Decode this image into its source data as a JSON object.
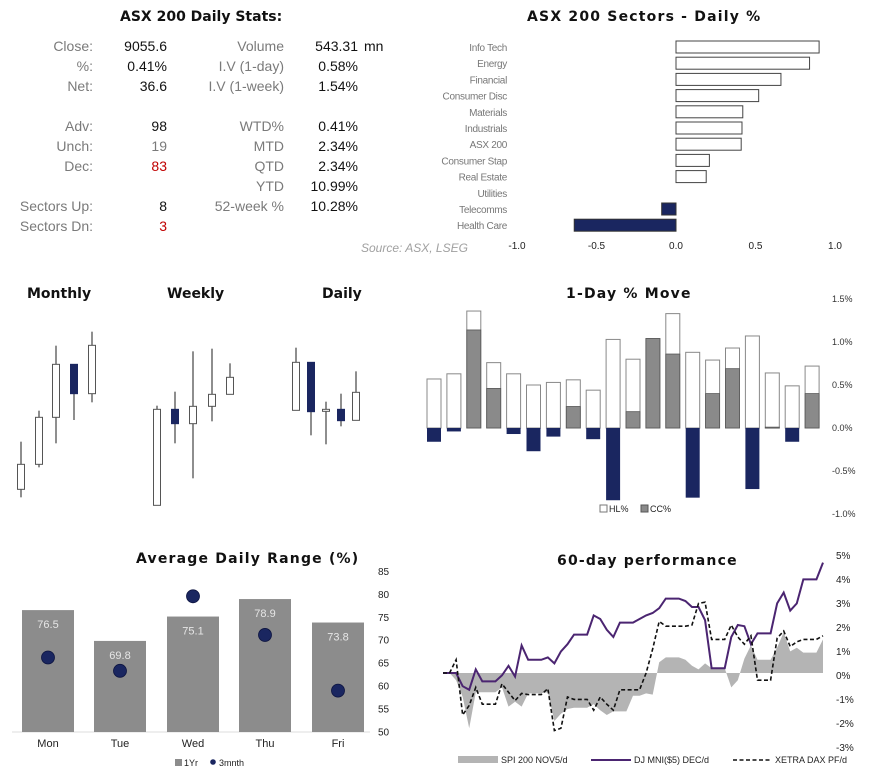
{
  "colors": {
    "navy": "#1a2660",
    "bar_gray": "#8c8c8c",
    "area_gray": "#b4b4b4",
    "purple": "#4b2571",
    "red": "#c00000"
  },
  "stats": {
    "title": "ASX 200 Daily Stats:",
    "left": [
      {
        "label": "Close:",
        "value": "9055.6"
      },
      {
        "label": "%:",
        "value": "0.41%"
      },
      {
        "label": "Net:",
        "value": "36.6"
      },
      {
        "label": "Adv:",
        "value": "98"
      },
      {
        "label": "Unch:",
        "value": "19"
      },
      {
        "label": "Dec:",
        "value": "83"
      },
      {
        "label": "Sectors Up:",
        "value": "8"
      },
      {
        "label": "Sectors Dn:",
        "value": "3"
      }
    ],
    "right": [
      {
        "label": "Volume",
        "value": "543.31",
        "unit": "mn"
      },
      {
        "label": "I.V (1-day)",
        "value": "0.58%"
      },
      {
        "label": "I.V (1-week)",
        "value": "1.54%"
      },
      {
        "label": "WTD%",
        "value": "0.41%"
      },
      {
        "label": "MTD",
        "value": "2.34%"
      },
      {
        "label": "QTD",
        "value": "2.34%"
      },
      {
        "label": "YTD",
        "value": "10.99%"
      },
      {
        "label": "52-week %",
        "value": "10.28%"
      }
    ],
    "source": "Source: ASX, LSEG"
  },
  "chart_data": [
    {
      "id": "sectors",
      "type": "bar",
      "orientation": "horizontal",
      "title": "ASX 200 Sectors - Daily %",
      "categories": [
        "Info Tech",
        "Energy",
        "Financial",
        "Consumer Disc",
        "Materials",
        "Industrials",
        "ASX 200",
        "Consumer Stap",
        "Real Estate",
        "Utilities",
        "Telecomms",
        "Health Care"
      ],
      "values": [
        0.9,
        0.84,
        0.66,
        0.52,
        0.42,
        0.415,
        0.41,
        0.21,
        0.19,
        0.0,
        -0.09,
        -0.64
      ],
      "xlim": [
        -1.0,
        1.0
      ],
      "xticks": [
        "-1.0",
        "-0.5",
        "0.0",
        "0.5",
        "1.0"
      ],
      "grid": false
    },
    {
      "id": "candles",
      "type": "candlestick",
      "panels": [
        {
          "title": "Monthly",
          "ohlc": [
            [
              72,
              215,
              48,
              147
            ],
            [
              147,
              308,
              138,
              288
            ],
            [
              288,
              503,
              210,
              447
            ],
            [
              447,
              447,
              280,
              359
            ],
            [
              359,
              545,
              333,
              504
            ]
          ]
        },
        {
          "title": "Weekly",
          "ohlc": [
            [
              24,
              323,
              24,
              312
            ],
            [
              312,
              365,
              210,
              269
            ],
            [
              269,
              486,
              105,
              321
            ],
            [
              321,
              494,
              276,
              357
            ],
            [
              357,
              450,
              357,
              408
            ]
          ]
        },
        {
          "title": "Daily",
          "ohlc": [
            [
              309,
              497,
              309,
              453
            ],
            [
              453,
              453,
              234,
              305
            ],
            [
              306,
              335,
              207,
              312
            ],
            [
              312,
              359,
              261,
              278
            ],
            [
              279,
              426,
              279,
              363
            ]
          ]
        }
      ]
    },
    {
      "id": "oneday",
      "type": "bar",
      "title": "1-Day % Move",
      "series": [
        {
          "name": "HL%",
          "values": [
            0.57,
            0.63,
            1.36,
            0.76,
            0.63,
            0.5,
            0.53,
            0.56,
            0.44,
            1.03,
            0.8,
            1.04,
            1.33,
            0.88,
            0.79,
            0.93,
            1.07,
            0.64,
            0.49,
            0.72
          ]
        },
        {
          "name": "CC%",
          "values": [
            -0.16,
            -0.04,
            1.14,
            0.46,
            -0.07,
            -0.27,
            -0.1,
            0.25,
            -0.13,
            -0.84,
            0.19,
            1.04,
            0.86,
            -0.81,
            0.4,
            0.69,
            -0.71,
            0.01,
            -0.16,
            0.4
          ]
        }
      ],
      "ylim": [
        -1.0,
        1.5
      ],
      "yticks": [
        "1.5%",
        "1.0%",
        "0.5%",
        "0.0%",
        "-0.5%",
        "-1.0%"
      ],
      "legend": "bottom"
    },
    {
      "id": "adr",
      "type": "bar",
      "title": "Average Daily Range (%)",
      "categories": [
        "Mon",
        "Tue",
        "Wed",
        "Thu",
        "Fri"
      ],
      "series": [
        {
          "name": "1Yr",
          "values": [
            76.5,
            69.8,
            75.1,
            78.9,
            73.8
          ],
          "labels": [
            "76.5",
            "69.8",
            "75.1",
            "78.9",
            "73.8"
          ]
        },
        {
          "name": "3mnth",
          "values": [
            66.2,
            63.3,
            79.5,
            71.1,
            59.0
          ]
        }
      ],
      "ylim": [
        50,
        85
      ],
      "yticks": [
        "85",
        "80",
        "75",
        "70",
        "65",
        "60",
        "55",
        "50"
      ],
      "legend": "bottom"
    },
    {
      "id": "perf60",
      "type": "line",
      "title": "60-day performance",
      "ylim": [
        -3,
        5
      ],
      "yticks": [
        "5%",
        "4%",
        "3%",
        "2%",
        "1%",
        "0%",
        "-1%",
        "-2%",
        "-3%"
      ],
      "series": [
        {
          "name": "SPI 200 NOV5/d",
          "style": "area",
          "values": [
            0,
            0,
            -0.3,
            -1.0,
            -2.3,
            -0.8,
            -0.8,
            -0.8,
            -0.8,
            -0.6,
            -1.4,
            -1.2,
            -1.4,
            -0.85,
            -0.85,
            -0.85,
            -0.8,
            -2.0,
            -1.7,
            -1.5,
            -1.45,
            -1.45,
            -1.45,
            -1.3,
            -1.55,
            -1.75,
            -1.6,
            -1.6,
            -1.6,
            -0.95,
            -0.95,
            -0.85,
            -0.9,
            0.45,
            0.65,
            0.65,
            0.65,
            0.55,
            0.3,
            0.15,
            0.4,
            0.2,
            0.2,
            0.2,
            -0.6,
            -0.3,
            0.6,
            1.15,
            0.55,
            0.55,
            0.55,
            1.05,
            1.7,
            0.9,
            1.05,
            0.85,
            0.85,
            0.85,
            1.4
          ]
        },
        {
          "name": "DJ MNI($5) DEC/d",
          "style": "solid",
          "values": [
            0,
            0,
            0,
            -0.55,
            -0.7,
            0.15,
            -0.35,
            -0.35,
            -0.35,
            -0.1,
            0.3,
            -0.15,
            1.15,
            0.55,
            0.55,
            0.55,
            0.65,
            0.4,
            0.9,
            1.2,
            1.6,
            1.6,
            1.6,
            2.4,
            2.25,
            1.8,
            1.5,
            2.1,
            2.1,
            2.1,
            2.25,
            2.4,
            2.5,
            2.7,
            3.1,
            3.1,
            3.1,
            3.0,
            2.75,
            2.75,
            2.2,
            0.2,
            0.2,
            0.2,
            1.5,
            2.0,
            1.95,
            1.2,
            1.65,
            1.65,
            1.65,
            2.9,
            3.35,
            2.6,
            2.9,
            3.9,
            3.9,
            3.9,
            4.6
          ]
        },
        {
          "name": "XETRA DAX PF/d",
          "style": "dashed",
          "values": [
            0,
            0,
            0.55,
            -1.75,
            -1.35,
            -0.6,
            -1.3,
            -1.3,
            -1.3,
            -0.45,
            -0.8,
            -1.15,
            -0.85,
            -0.9,
            -0.9,
            -0.9,
            -0.65,
            -2.4,
            -2.3,
            -1.0,
            -1.1,
            -1.1,
            -1.1,
            -1.55,
            -1.0,
            -1.3,
            -1.55,
            -0.7,
            -0.7,
            -0.7,
            -0.7,
            0.0,
            1.0,
            2.15,
            1.95,
            1.95,
            1.95,
            1.95,
            2.0,
            2.9,
            2.95,
            1.4,
            1.4,
            1.4,
            2.0,
            1.5,
            1.2,
            1.55,
            -0.3,
            -0.3,
            -0.3,
            1.45,
            1.75,
            1.1,
            1.3,
            1.4,
            1.4,
            1.4,
            1.55
          ]
        }
      ],
      "legend": "bottom"
    }
  ]
}
